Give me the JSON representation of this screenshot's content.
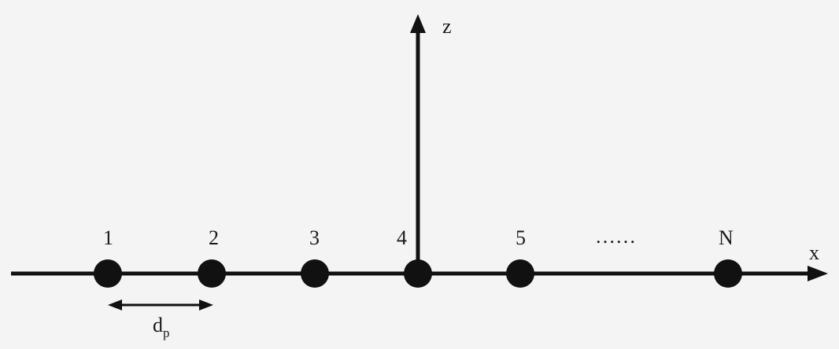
{
  "axes": {
    "x_label": "x",
    "z_label": "z"
  },
  "nodes": [
    {
      "label": "1"
    },
    {
      "label": "2"
    },
    {
      "label": "3"
    },
    {
      "label": "4"
    },
    {
      "label": "5"
    },
    {
      "label": "N"
    }
  ],
  "ellipsis": "……",
  "spacing": {
    "symbol": "d",
    "subscript": "p"
  },
  "colors": {
    "ink": "#111111",
    "background": "#f4f4f4"
  }
}
